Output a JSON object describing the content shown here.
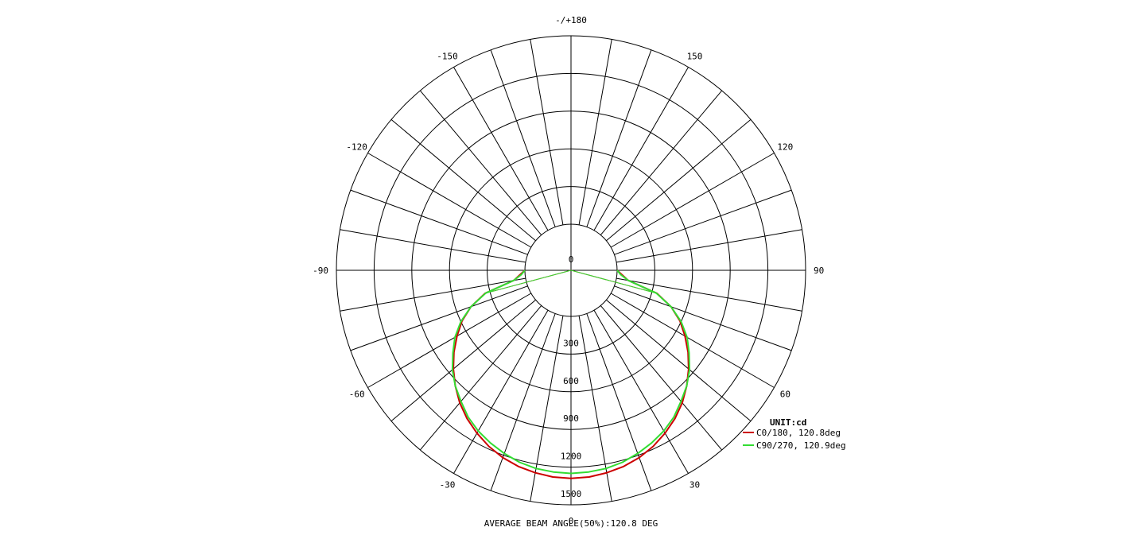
{
  "chart_data": {
    "type": "polar",
    "subtype": "luminous-intensity-distribution",
    "unit_label": "UNIT:cd",
    "footer": "AVERAGE BEAM ANGLE(50%):120.8 DEG",
    "angle_labels": [
      {
        "angle": 180,
        "text": "-/+180"
      },
      {
        "angle": -150,
        "text": "-150"
      },
      {
        "angle": 150,
        "text": "150"
      },
      {
        "angle": -120,
        "text": "-120"
      },
      {
        "angle": 120,
        "text": "120"
      },
      {
        "angle": -90,
        "text": "-90"
      },
      {
        "angle": 90,
        "text": "90"
      },
      {
        "angle": -60,
        "text": "-60"
      },
      {
        "angle": 60,
        "text": "60"
      },
      {
        "angle": -30,
        "text": "-30"
      },
      {
        "angle": 30,
        "text": "30"
      },
      {
        "angle": 0,
        "text": "0"
      }
    ],
    "radial_ticks": [
      {
        "value": 0,
        "text": "0"
      },
      {
        "value": 300,
        "text": "300"
      },
      {
        "value": 600,
        "text": "600"
      },
      {
        "value": 900,
        "text": "900"
      },
      {
        "value": 1200,
        "text": "1200"
      },
      {
        "value": 1500,
        "text": "1500"
      }
    ],
    "radial_max": 1500,
    "spoke_step_deg": 10,
    "series": [
      {
        "name": "C0/180, 120.8deg",
        "color": "#cc0000",
        "angles": [
          -90,
          -85,
          -80,
          -75,
          -70,
          -65,
          -60,
          -55,
          -50,
          -45,
          -40,
          -35,
          -30,
          -25,
          -20,
          -15,
          -10,
          -5,
          0,
          5,
          10,
          15,
          20,
          25,
          30,
          35,
          40,
          45,
          50,
          55,
          60,
          65,
          70,
          75,
          80,
          85,
          90
        ],
        "values": [
          0,
          40,
          95,
          340,
          480,
          590,
          680,
          770,
          855,
          935,
          1010,
          1075,
          1130,
          1180,
          1220,
          1250,
          1270,
          1285,
          1290,
          1285,
          1270,
          1250,
          1220,
          1180,
          1130,
          1075,
          1010,
          935,
          855,
          770,
          680,
          590,
          480,
          340,
          95,
          40,
          0
        ]
      },
      {
        "name": "C90/270, 120.9deg",
        "color": "#33dd33",
        "angles": [
          -90,
          -85,
          -80,
          -75,
          -70,
          -65,
          -60,
          -55,
          -50,
          -45,
          -40,
          -35,
          -30,
          -25,
          -20,
          -15,
          -10,
          -5,
          0,
          5,
          10,
          15,
          20,
          25,
          30,
          35,
          40,
          45,
          50,
          55,
          60,
          65,
          70,
          75,
          80,
          85,
          90
        ],
        "values": [
          0,
          30,
          95,
          335,
          480,
          600,
          700,
          780,
          865,
          935,
          995,
          1060,
          1110,
          1150,
          1185,
          1215,
          1235,
          1245,
          1250,
          1245,
          1235,
          1215,
          1185,
          1150,
          1110,
          1060,
          995,
          935,
          865,
          780,
          700,
          600,
          480,
          335,
          95,
          30,
          0
        ]
      }
    ],
    "legend_position": "bottom-right"
  }
}
